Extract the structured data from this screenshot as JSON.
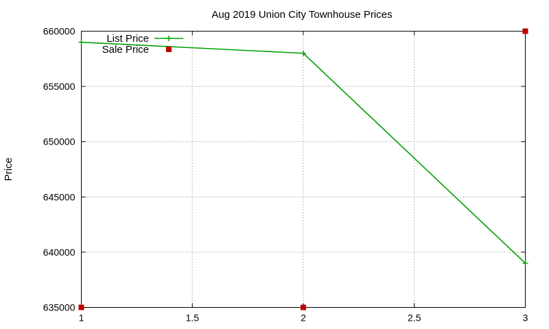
{
  "chart_data": {
    "type": "line",
    "title": "Aug 2019 Union City Townhouse Prices",
    "xlabel": "",
    "ylabel": "Price",
    "xlim": [
      1,
      3
    ],
    "ylim": [
      635000,
      660000
    ],
    "xticks": [
      1,
      1.5,
      2,
      2.5,
      3
    ],
    "xtick_labels": [
      "1",
      "1.5",
      "2",
      "2.5",
      "3"
    ],
    "yticks": [
      635000,
      640000,
      645000,
      650000,
      655000,
      660000
    ],
    "ytick_labels": [
      "635000",
      "640000",
      "645000",
      "650000",
      "655000",
      "660000"
    ],
    "grid": true,
    "legend_position": "top-left",
    "series": [
      {
        "name": "List Price",
        "kind": "line",
        "color": "#00a000",
        "marker": "plus",
        "x": [
          1,
          2,
          3
        ],
        "y": [
          659000,
          658000,
          639000
        ]
      },
      {
        "name": "Sale Price",
        "kind": "points",
        "color": "#c00000",
        "marker": "square",
        "x": [
          1,
          2,
          3
        ],
        "y": [
          635000,
          635000,
          660000
        ]
      }
    ]
  }
}
